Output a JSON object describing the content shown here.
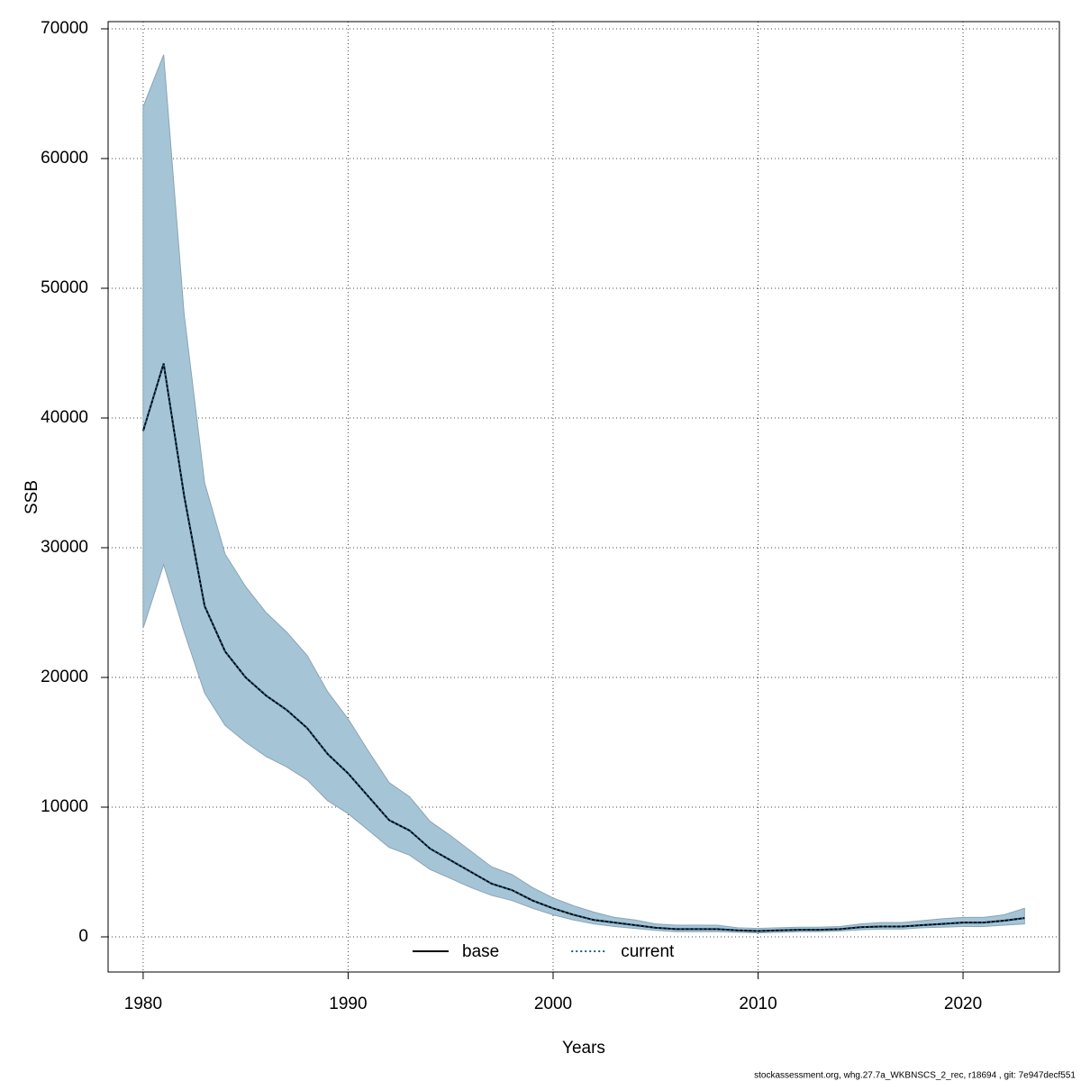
{
  "chart_data": {
    "type": "line",
    "x_label": "Years",
    "y_label": "SSB",
    "footer": "stockassessment.org, whg.27.7a_WKBNSCS_2_rec, r18694 , git: 7e947decf551",
    "x": [
      1980,
      1981,
      1982,
      1983,
      1984,
      1985,
      1986,
      1987,
      1988,
      1989,
      1990,
      1991,
      1992,
      1993,
      1994,
      1995,
      1996,
      1997,
      1998,
      1999,
      2000,
      2001,
      2002,
      2003,
      2004,
      2005,
      2006,
      2007,
      2008,
      2009,
      2010,
      2011,
      2012,
      2013,
      2014,
      2015,
      2016,
      2017,
      2018,
      2019,
      2020,
      2021,
      2022,
      2023
    ],
    "band": {
      "color": "#a5c5d6",
      "upper": [
        64000,
        68000,
        48000,
        35000,
        29500,
        27000,
        25000,
        23500,
        21700,
        18900,
        16800,
        14300,
        11900,
        10800,
        8900,
        7800,
        6600,
        5400,
        4800,
        3800,
        3000,
        2400,
        1900,
        1500,
        1300,
        1000,
        900,
        900,
        900,
        700,
        650,
        700,
        750,
        750,
        800,
        1000,
        1100,
        1100,
        1250,
        1400,
        1500,
        1500,
        1700,
        2200
      ],
      "lower": [
        23800,
        28700,
        23500,
        18800,
        16300,
        15000,
        13900,
        13100,
        12100,
        10500,
        9500,
        8200,
        6900,
        6300,
        5200,
        4500,
        3800,
        3200,
        2800,
        2200,
        1700,
        1300,
        1000,
        800,
        650,
        500,
        400,
        400,
        400,
        350,
        300,
        350,
        400,
        400,
        450,
        550,
        600,
        600,
        700,
        750,
        800,
        800,
        900,
        1000
      ]
    },
    "series": [
      {
        "name": "base",
        "color": "#000000",
        "dash": "solid",
        "values": [
          39000,
          44200,
          34000,
          25500,
          22000,
          20000,
          18600,
          17500,
          16100,
          14100,
          12600,
          10800,
          9000,
          8200,
          6800,
          5900,
          5000,
          4100,
          3600,
          2800,
          2200,
          1700,
          1300,
          1100,
          900,
          700,
          600,
          600,
          600,
          500,
          450,
          500,
          550,
          550,
          600,
          750,
          800,
          800,
          900,
          1000,
          1100,
          1100,
          1250,
          1450
        ]
      },
      {
        "name": "current",
        "color": "#1f5c86",
        "dash": "dotted",
        "values": [
          39000,
          44200,
          34000,
          25500,
          22000,
          20000,
          18600,
          17500,
          16100,
          14100,
          12600,
          10800,
          9000,
          8200,
          6800,
          5900,
          5000,
          4100,
          3600,
          2800,
          2200,
          1700,
          1300,
          1100,
          900,
          700,
          600,
          600,
          600,
          500,
          450,
          500,
          550,
          550,
          600,
          750,
          800,
          800,
          900,
          1000,
          1100,
          1100,
          1250,
          1450
        ]
      }
    ],
    "xlim": [
      1978.29,
      2024.7
    ],
    "xticks": [
      1980,
      1990,
      2000,
      2010,
      2020
    ],
    "ylim": [
      -2708,
      70556
    ],
    "yticks": [
      0,
      10000,
      20000,
      30000,
      40000,
      50000,
      60000,
      70000
    ],
    "grid": true,
    "legend": "bottom"
  }
}
